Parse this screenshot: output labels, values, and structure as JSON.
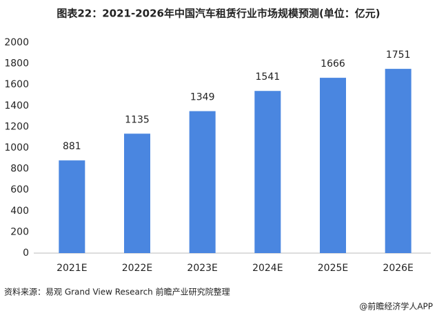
{
  "chart_data": {
    "type": "bar",
    "title": "图表22：2021-2026年中国汽车租赁行业市场规模预测(单位：亿元)",
    "categories": [
      "2021E",
      "2022E",
      "2023E",
      "2024E",
      "2025E",
      "2026E"
    ],
    "values": [
      881,
      1135,
      1349,
      1541,
      1666,
      1751
    ],
    "color": "#4a86e0",
    "ylim": [
      0,
      2000
    ],
    "yticks": [
      0,
      200,
      400,
      600,
      800,
      1000,
      1200,
      1400,
      1600,
      1800,
      2000
    ],
    "grid": false,
    "source": "资料来源：易观 Grand View Research 前瞻产业研究院整理",
    "footer": "@前瞻经济学人APP"
  }
}
